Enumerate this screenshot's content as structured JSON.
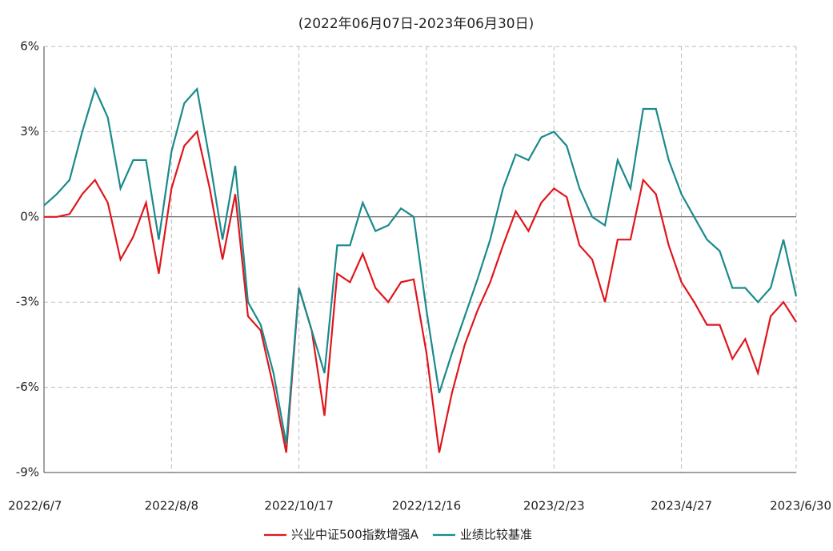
{
  "chart_data": {
    "type": "line",
    "subtitle": "(2022年06月07日-2023年06月30日)",
    "categories": [
      "2022/6/7",
      null,
      null,
      null,
      null,
      null,
      null,
      null,
      null,
      null,
      "2022/8/8",
      null,
      null,
      null,
      null,
      null,
      null,
      null,
      null,
      null,
      "2022/10/17",
      null,
      null,
      null,
      null,
      null,
      null,
      null,
      null,
      null,
      "2022/12/16",
      null,
      null,
      null,
      null,
      null,
      null,
      null,
      null,
      null,
      "2023/2/23",
      null,
      null,
      null,
      null,
      null,
      null,
      null,
      null,
      null,
      "2023/4/27",
      null,
      null,
      null,
      null,
      null,
      null,
      null,
      null,
      "2023/6/30"
    ],
    "series": [
      {
        "name": "兴业中证500指数增强A",
        "color": "#e0161c",
        "values": [
          0,
          0,
          0.1,
          0.8,
          1.3,
          0.5,
          -1.5,
          -0.7,
          0.5,
          -2.0,
          1.0,
          2.5,
          3.0,
          1.0,
          -1.5,
          0.8,
          -3.5,
          -4.0,
          -6.0,
          -8.3,
          -2.5,
          -4.0,
          -7.0,
          -2.0,
          -2.3,
          -1.3,
          -2.5,
          -3.0,
          -2.3,
          -2.2,
          -4.8,
          -8.3,
          -6.2,
          -4.5,
          -3.3,
          -2.3,
          -1.0,
          0.2,
          -0.5,
          0.5,
          1.0,
          0.7,
          -1.0,
          -1.5,
          -3.0,
          -0.8,
          -0.8,
          1.3,
          0.8,
          -1.0,
          -2.3,
          -3.0,
          -3.8,
          -3.8,
          -5.0,
          -4.3,
          -5.5,
          -3.5,
          -3.0,
          -3.7
        ]
      },
      {
        "name": "业绩比较基准",
        "color": "#1a8a8c",
        "values": [
          0.4,
          0.8,
          1.3,
          3.0,
          4.5,
          3.5,
          1.0,
          2.0,
          2.0,
          -0.8,
          2.3,
          4.0,
          4.5,
          2.0,
          -0.8,
          1.8,
          -3.0,
          -3.8,
          -5.5,
          -8.0,
          -2.5,
          -4.0,
          -5.5,
          -1.0,
          -1.0,
          0.5,
          -0.5,
          -0.3,
          0.3,
          0,
          -3.3,
          -6.2,
          -4.8,
          -3.5,
          -2.2,
          -0.8,
          1.0,
          2.2,
          2.0,
          2.8,
          3.0,
          2.5,
          1.0,
          0,
          -0.3,
          2.0,
          1.0,
          3.8,
          3.8,
          2.0,
          0.8,
          0,
          -0.8,
          -1.2,
          -2.5,
          -2.5,
          -3.0,
          -2.5,
          -0.8,
          -2.8
        ]
      }
    ],
    "ylim": [
      -9,
      6
    ],
    "yticks": [
      {
        "value": -9,
        "label": "-9%"
      },
      {
        "value": -6,
        "label": "-6%"
      },
      {
        "value": -3,
        "label": "-3%"
      },
      {
        "value": 0,
        "label": "0%"
      },
      {
        "value": 3,
        "label": "3%"
      },
      {
        "value": 6,
        "label": "6%"
      }
    ],
    "grid": true
  }
}
